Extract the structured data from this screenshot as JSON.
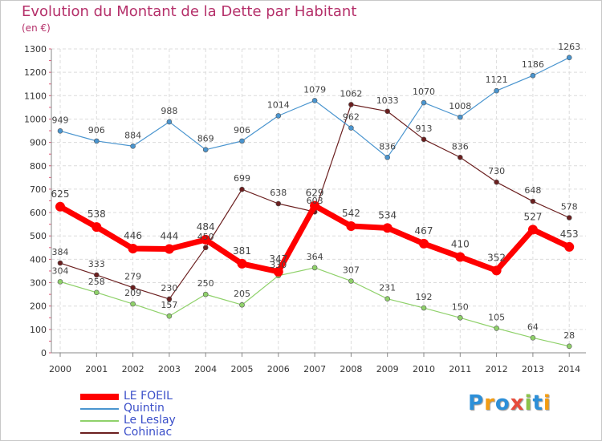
{
  "title": "Evolution du Montant de la Dette par Habitant",
  "unit_label": "(en €)",
  "logo": {
    "text": "Proxiti",
    "colors": [
      "#2c8fd8",
      "#f39c12",
      "#2c8fd8",
      "#e74c3c",
      "#8bc34a",
      "#2c8fd8",
      "#f39c12"
    ]
  },
  "chart_data": {
    "type": "line",
    "title": "Evolution du Montant de la Dette par Habitant",
    "xlabel": "",
    "ylabel": "(en €)",
    "ylim": [
      0,
      1300
    ],
    "yticks": [
      0,
      100,
      200,
      300,
      400,
      500,
      600,
      700,
      800,
      900,
      1000,
      1100,
      1200,
      1300
    ],
    "grid": true,
    "legend_position": "bottom-left",
    "x": [
      "2000",
      "2001",
      "2002",
      "2003",
      "2004",
      "2005",
      "2006",
      "2007",
      "2008",
      "2009",
      "2010",
      "2011",
      "2012",
      "2013",
      "2014"
    ],
    "series": [
      {
        "name": "LE FOEIL",
        "color": "#ff0000",
        "values": [
          625,
          538,
          446,
          444,
          484,
          381,
          347,
          629,
          542,
          534,
          467,
          410,
          352,
          527,
          453
        ]
      },
      {
        "name": "Quintin",
        "color": "#4a95cf",
        "values": [
          949,
          906,
          884,
          988,
          869,
          906,
          1014,
          1079,
          962,
          836,
          1070,
          1008,
          1121,
          1186,
          1263
        ]
      },
      {
        "name": "Le Leslay",
        "color": "#8fd16a",
        "values": [
          304,
          258,
          209,
          157,
          250,
          205,
          330,
          364,
          307,
          231,
          192,
          150,
          105,
          64,
          28
        ]
      },
      {
        "name": "Cohiniac",
        "color": "#6b1f1f",
        "values": [
          384,
          333,
          279,
          230,
          450,
          699,
          638,
          603,
          1062,
          1033,
          913,
          836,
          730,
          648,
          578
        ]
      }
    ]
  }
}
